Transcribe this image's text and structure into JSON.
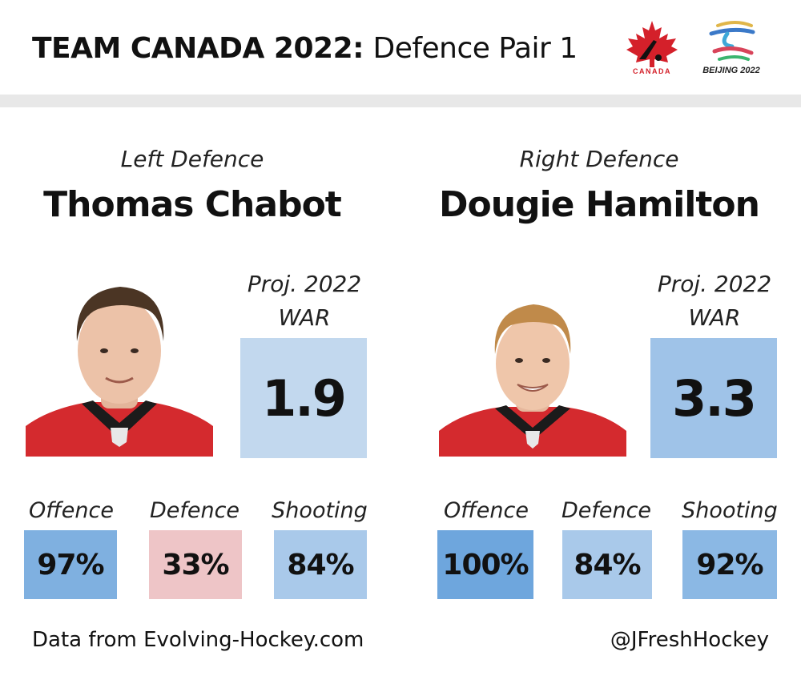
{
  "header": {
    "title_bold": "TEAM CANADA 2022:",
    "title_light": "Defence Pair 1",
    "logo_canada_text": "CANADA",
    "logo_beijing_text": "BEIJING 2022"
  },
  "players": [
    {
      "position": "Left Defence",
      "name": "Thomas Chabot",
      "war_label_1": "Proj. 2022",
      "war_label_2": "WAR",
      "war_value": "1.9",
      "war_color": "#c2d8ee",
      "stats": [
        {
          "label": "Offence",
          "value": "97%",
          "color": "#7fb0e0"
        },
        {
          "label": "Defence",
          "value": "33%",
          "color": "#eec5c7"
        },
        {
          "label": "Shooting",
          "value": "84%",
          "color": "#a9c9ea"
        }
      ]
    },
    {
      "position": "Right Defence",
      "name": "Dougie Hamilton",
      "war_label_1": "Proj. 2022",
      "war_label_2": "WAR",
      "war_value": "3.3",
      "war_color": "#9fc3e8",
      "stats": [
        {
          "label": "Offence",
          "value": "100%",
          "color": "#6ea6dd"
        },
        {
          "label": "Defence",
          "value": "84%",
          "color": "#a9c9ea"
        },
        {
          "label": "Shooting",
          "value": "92%",
          "color": "#8bb8e4"
        }
      ]
    }
  ],
  "footer": {
    "source": "Data from Evolving-Hockey.com",
    "handle": "@JFreshHockey"
  },
  "icons": {
    "canada_logo": "hockey-canada-maple-leaf-icon",
    "beijing_logo": "beijing-2022-emblem-icon",
    "photo_left": "player-headshot-chabot",
    "photo_right": "player-headshot-hamilton"
  }
}
